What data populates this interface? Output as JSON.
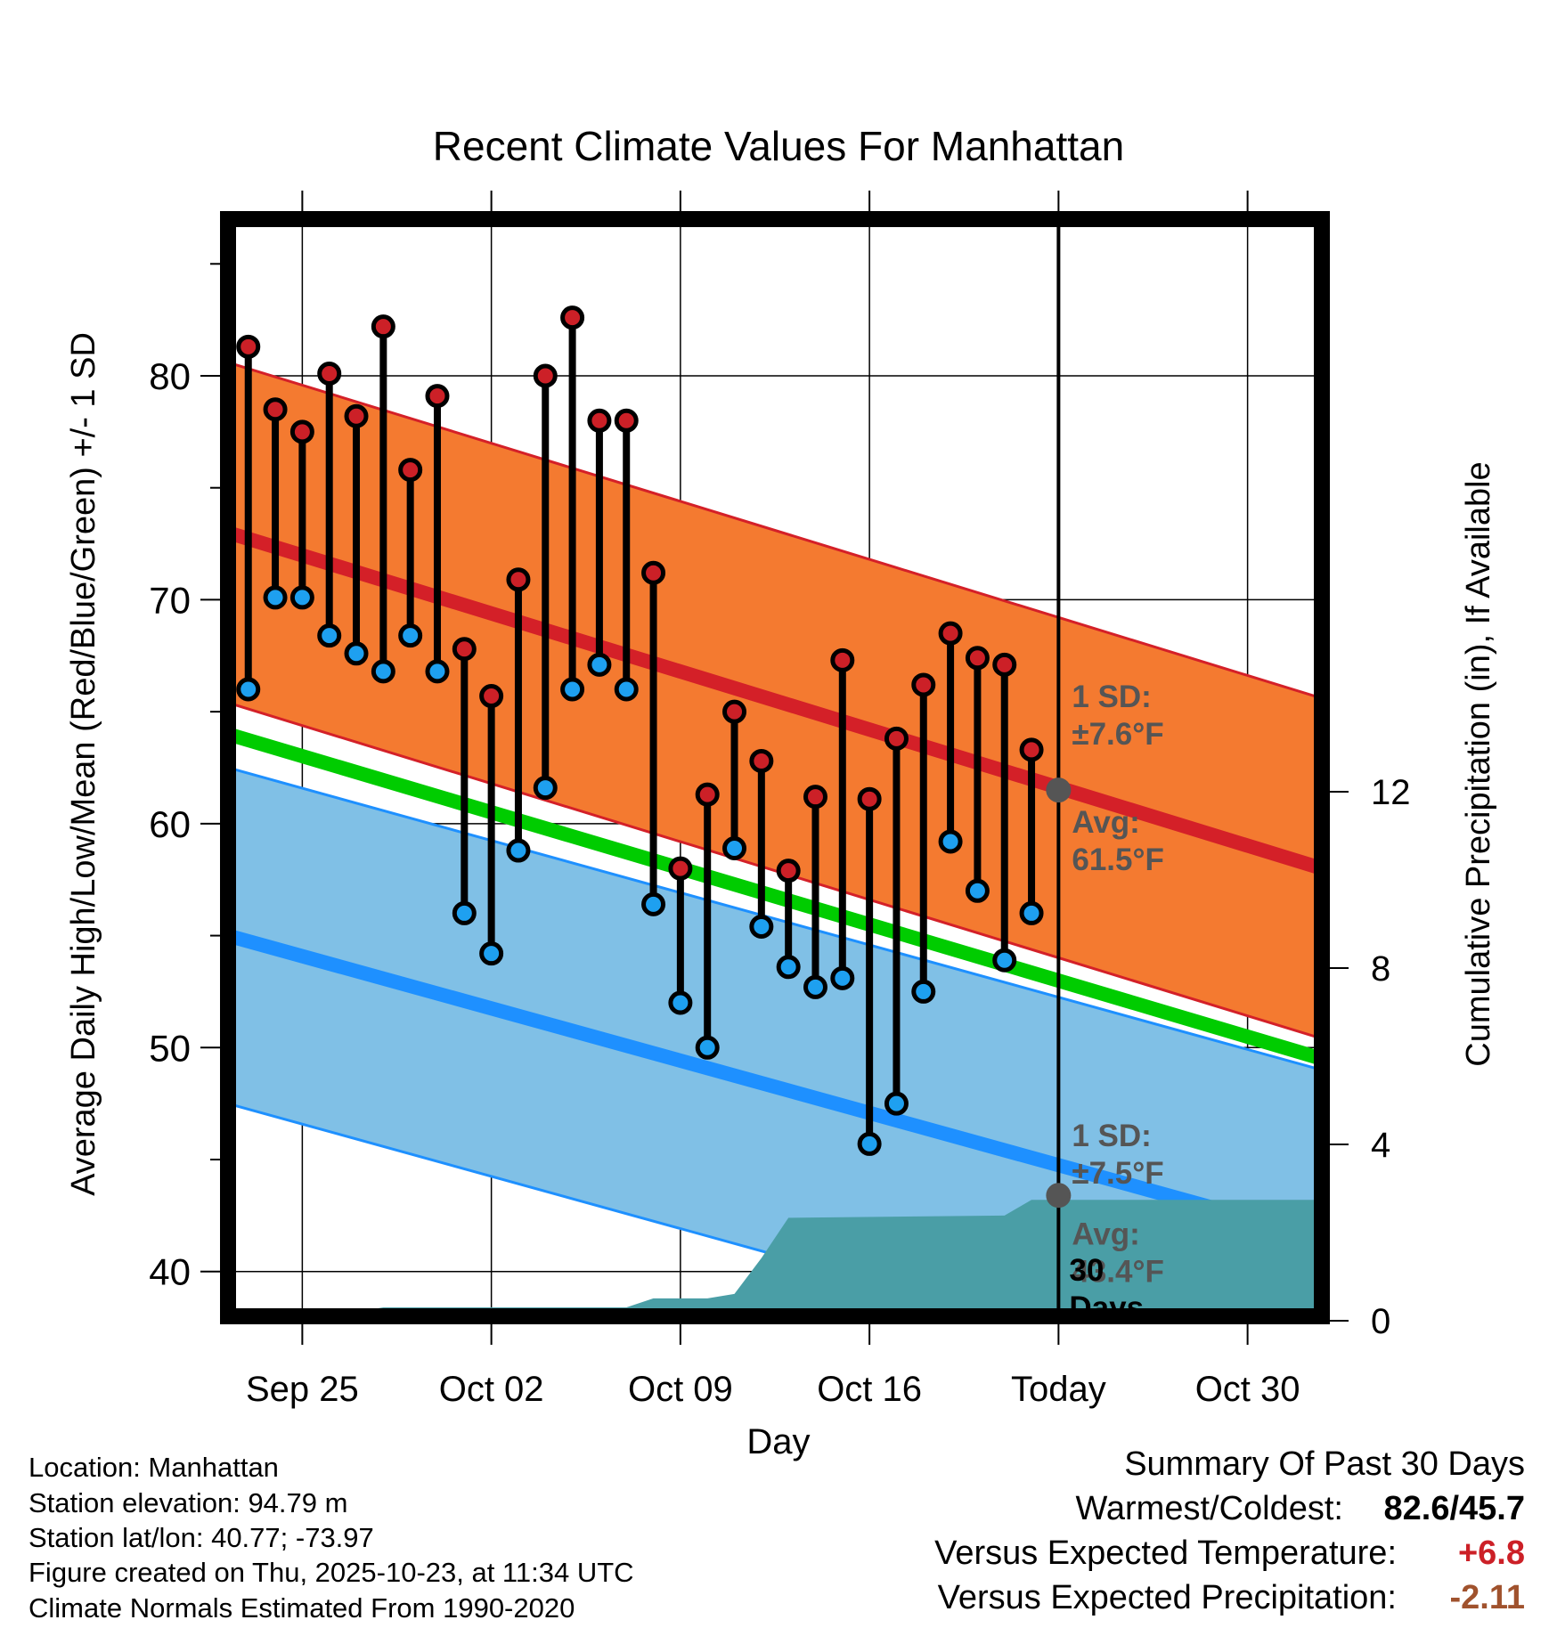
{
  "chart_data": {
    "type": "climate-range",
    "title": "Recent Climate Values For Manhattan",
    "xlabel": "Day",
    "ylabel_left": "Average Daily High/Low/Mean (Red/Blue/Green) +/- 1 SD",
    "ylabel_right": "Cumulative Precipitation (in), If Available",
    "x_ticks": [
      {
        "day": 0,
        "label": "Sep 25"
      },
      {
        "day": 7,
        "label": "Oct 02"
      },
      {
        "day": 14,
        "label": "Oct 09"
      },
      {
        "day": 21,
        "label": "Oct 16"
      },
      {
        "day": 28,
        "label": "Today"
      },
      {
        "day": 35,
        "label": "Oct 30"
      }
    ],
    "xlim": [
      -2.75,
      37.75
    ],
    "ylim": [
      38,
      87
    ],
    "y_ticks": [
      40,
      50,
      60,
      70,
      80
    ],
    "y2lim": [
      0,
      12
    ],
    "y2_ticks": [
      0,
      4,
      8,
      12
    ],
    "y2_min_data": 38,
    "y2_data_per_inch": 2.0,
    "today_day": 28,
    "normals": {
      "high_mean": {
        "start": 73.0,
        "end": 58.0
      },
      "high_sd": 7.6,
      "low_mean": {
        "start": 55.0,
        "end": 41.5
      },
      "low_sd": 7.5,
      "mean": {
        "start": 64.0,
        "end": 49.5
      }
    },
    "observations": [
      {
        "day": -2,
        "high": 81.3,
        "low": 66.0
      },
      {
        "day": -1,
        "high": 78.5,
        "low": 70.1
      },
      {
        "day": 0,
        "high": 77.5,
        "low": 70.1
      },
      {
        "day": 1,
        "high": 80.1,
        "low": 68.4
      },
      {
        "day": 2,
        "high": 78.2,
        "low": 67.6
      },
      {
        "day": 3,
        "high": 82.2,
        "low": 66.8
      },
      {
        "day": 4,
        "high": 75.8,
        "low": 68.4
      },
      {
        "day": 5,
        "high": 79.1,
        "low": 66.8
      },
      {
        "day": 6,
        "high": 67.8,
        "low": 56.0
      },
      {
        "day": 7,
        "high": 65.7,
        "low": 54.2
      },
      {
        "day": 8,
        "high": 70.9,
        "low": 58.8
      },
      {
        "day": 9,
        "high": 80.0,
        "low": 61.6
      },
      {
        "day": 10,
        "high": 82.6,
        "low": 66.0
      },
      {
        "day": 11,
        "high": 78.0,
        "low": 67.1
      },
      {
        "day": 12,
        "high": 78.0,
        "low": 66.0
      },
      {
        "day": 13,
        "high": 71.2,
        "low": 56.4
      },
      {
        "day": 14,
        "high": 58.0,
        "low": 52.0
      },
      {
        "day": 15,
        "high": 61.3,
        "low": 50.0
      },
      {
        "day": 16,
        "high": 65.0,
        "low": 58.9
      },
      {
        "day": 17,
        "high": 62.8,
        "low": 55.4
      },
      {
        "day": 18,
        "high": 57.9,
        "low": 53.6
      },
      {
        "day": 19,
        "high": 61.2,
        "low": 52.7
      },
      {
        "day": 20,
        "high": 67.3,
        "low": 53.1
      },
      {
        "day": 21,
        "high": 61.1,
        "low": 45.7
      },
      {
        "day": 22,
        "high": 63.8,
        "low": 47.5
      },
      {
        "day": 23,
        "high": 66.2,
        "low": 52.5
      },
      {
        "day": 24,
        "high": 68.5,
        "low": 59.2
      },
      {
        "day": 25,
        "high": 67.4,
        "low": 57.0
      },
      {
        "day": 26,
        "high": 67.1,
        "low": 53.9
      },
      {
        "day": 27,
        "high": 63.3,
        "low": 56.0
      }
    ],
    "precip_cumulative": [
      {
        "day": -2,
        "inches": 0.0
      },
      {
        "day": 0,
        "inches": 0.05
      },
      {
        "day": 2,
        "inches": 0.1
      },
      {
        "day": 3,
        "inches": 0.2
      },
      {
        "day": 12,
        "inches": 0.2
      },
      {
        "day": 13,
        "inches": 0.4
      },
      {
        "day": 15,
        "inches": 0.4
      },
      {
        "day": 16,
        "inches": 0.5
      },
      {
        "day": 17,
        "inches": 1.3
      },
      {
        "day": 18,
        "inches": 2.2
      },
      {
        "day": 26,
        "inches": 2.25
      },
      {
        "day": 27,
        "inches": 2.6
      },
      {
        "day": 37.75,
        "inches": 2.6
      }
    ],
    "annotations": {
      "high_sd_label": [
        "1 SD:",
        "±7.6°F"
      ],
      "high_avg_label": [
        "Avg:",
        "61.5°F"
      ],
      "high_avg_today": 61.5,
      "low_sd_label": [
        "1 SD:",
        "±7.5°F"
      ],
      "low_avg_label": [
        "Avg:",
        "43.4°F"
      ],
      "low_avg_today": 43.4,
      "precip_window_label": [
        "30",
        "Days"
      ]
    },
    "colors": {
      "high_band": "#f47a30",
      "high_line": "#d42028",
      "low_band": "#80c0e6",
      "low_line": "#1e90ff",
      "mean_line": "#00cc00",
      "precip": "#4a9ea6",
      "high_marker": "#cc2027",
      "low_marker": "#1ea0f0",
      "today_marker": "#555555",
      "annotation_text": "#555555"
    }
  },
  "footer": {
    "location": "Location: Manhattan",
    "elevation": "Station elevation: 94.79 m",
    "latlon": "Station lat/lon: 40.77; -73.97",
    "created": "Figure created on Thu, 2025-10-23, at 11:34 UTC",
    "normals": "Climate Normals Estimated From 1990-2020"
  },
  "summary": {
    "title": "Summary Of Past 30 Days",
    "warmest_label": "Warmest/Coldest:",
    "warmest_value": "82.6/45.7",
    "temp_label": "Versus Expected Temperature:",
    "temp_value": "+6.8",
    "temp_color": "#cc2027",
    "precip_label": "Versus Expected Precipitation:",
    "precip_value": "-2.11",
    "precip_color": "#a0522d"
  }
}
